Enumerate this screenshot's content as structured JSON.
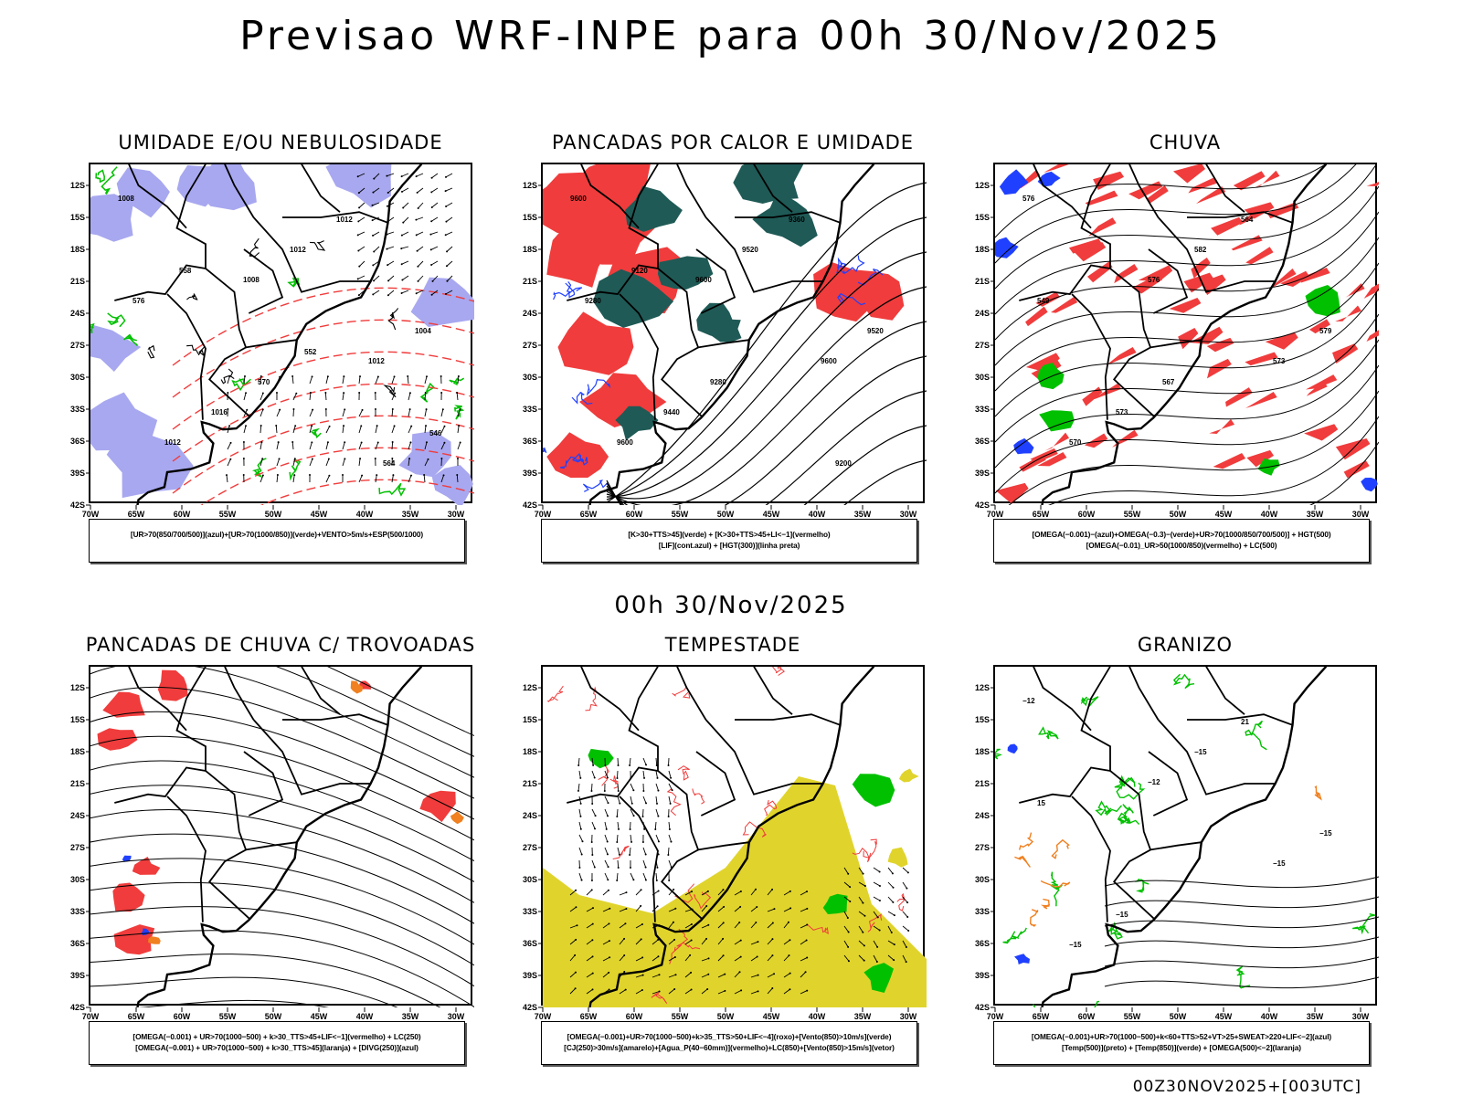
{
  "header": {
    "title": "Previsao WRF-INPE  para 00h 30/Nov/2025"
  },
  "subtitle": "00h 30/Nov/2025",
  "footer": "00Z30NOV2025+[003UTC]",
  "axes": {
    "lat_ticks": [
      "12S",
      "15S",
      "18S",
      "21S",
      "24S",
      "27S",
      "30S",
      "33S",
      "36S",
      "39S",
      "42S"
    ],
    "lon_ticks": [
      "70W",
      "65W",
      "60W",
      "55W",
      "50W",
      "45W",
      "40W",
      "35W",
      "30W"
    ]
  },
  "colors": {
    "humid_blue": "#a8a8f0",
    "green": "#00c000",
    "red": "#f03c3c",
    "dark_teal": "#1f5a56",
    "blue": "#2040ff",
    "yellow": "#e0d42c",
    "orange": "#f08020"
  },
  "panels": [
    {
      "id": "umidade",
      "title": "UMIDADE E/OU NEBULOSIDADE",
      "legend": [
        "[UR>70(850/700/500)](azul)+[UR>70(1000/850)](verde)+VENTO>5m/s+ESP(500/1000)"
      ],
      "labels": [
        "1008",
        "1008",
        "1012",
        "1012",
        "1012",
        "1004",
        "1016",
        "1012",
        "576",
        "570",
        "564",
        "558",
        "552",
        "546"
      ]
    },
    {
      "id": "pancadas-calor",
      "title": "PANCADAS POR CALOR E UMIDADE",
      "legend": [
        "[K>30+TTS>45](verde) + [K>30+TTS>45+LI<−1](vermelho)",
        "[LIF](cont.azul) + [HGT(300)](linha preta)"
      ],
      "labels": [
        "9600",
        "9600",
        "9600",
        "9600",
        "9520",
        "9520",
        "9440",
        "9360",
        "9280",
        "9280",
        "9200",
        "9120"
      ]
    },
    {
      "id": "chuva",
      "title": "CHUVA",
      "legend": [
        "[OMEGA(−0.001)−(azul)+OMEGA(−0.3)−(verde)+UR>70(1000/850/700/500)] + HGT(500)",
        "[OMEGA(−0.01)_UR>50(1000/850)(vermelho) + LC(500)"
      ],
      "labels": [
        "576",
        "576",
        "573",
        "570",
        "582",
        "579",
        "573",
        "564",
        "549",
        "567"
      ]
    },
    {
      "id": "pancadas-trovoadas",
      "title": "PANCADAS DE CHUVA C/ TROVOADAS",
      "legend": [
        "[OMEGA(−0.001) + UR>70(1000−500) + k>30_TTS>45+LIF<−1](vermelho) + LC(250)",
        "[OMEGA(−0.001) + UR>70(1000−500) + k>30_TTS>45](laranja) + [DIVG(250)](azul)"
      ],
      "labels": []
    },
    {
      "id": "tempestade",
      "title": "TEMPESTADE",
      "legend": [
        "[OMEGA(−0.001)+UR>70(1000−500)+k>35_TTS>50+LIF<−4](roxo)+[Vento(850)>10m/s](verde)",
        "[CJ(250)>30m/s](amarelo)+[Agua_P(40−60mm)](vermelho)+LC(850)+[Vento(850)>15m/s](vetor)"
      ],
      "labels": []
    },
    {
      "id": "granizo",
      "title": "GRANIZO",
      "legend": [
        "[OMEGA(−0.001)+UR>70(1000−500)+k<60+TTS>52+VT>25+SWEAT>220+LIF<−2](azul)",
        "[Temp(500)](preto) + [Temp(850)](verde) + [OMEGA(500)<−2](laranja)"
      ],
      "labels": [
        "−12",
        "−12",
        "−15",
        "−15",
        "−15",
        "−15",
        "−15",
        "21",
        "15"
      ]
    }
  ]
}
